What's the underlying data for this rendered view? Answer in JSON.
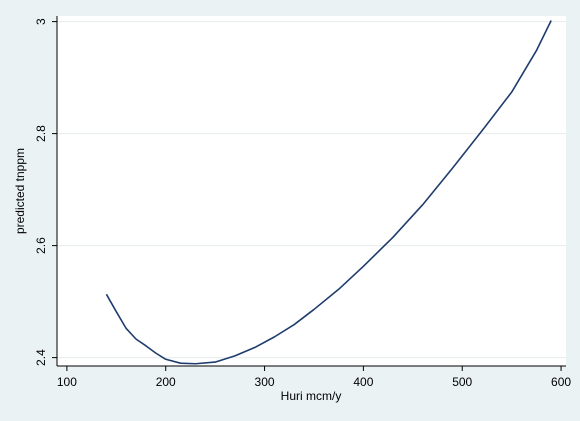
{
  "chart_data": {
    "type": "line",
    "title": "",
    "xlabel": "Huri mcm/y",
    "ylabel": "predicted tnppm",
    "xlim": [
      90,
      605
    ],
    "ylim": [
      2.385,
      3.01
    ],
    "xticks": [
      100,
      200,
      300,
      400,
      500,
      600
    ],
    "yticks": [
      2.4,
      2.6,
      2.8,
      3
    ],
    "xtick_labels": [
      "100",
      "200",
      "300",
      "400",
      "500",
      "600"
    ],
    "ytick_labels": [
      "2.4",
      "2.6",
      "2.8",
      "3"
    ],
    "grid": "horizontal",
    "series": [
      {
        "color": "#1f3c6e",
        "x": [
          140,
          150,
          160,
          170,
          180,
          190,
          200,
          215,
          230,
          250,
          270,
          290,
          310,
          330,
          350,
          375,
          400,
          430,
          460,
          490,
          520,
          550,
          575,
          590
        ],
        "y": [
          2.513,
          2.482,
          2.452,
          2.433,
          2.421,
          2.408,
          2.397,
          2.39,
          2.389,
          2.392,
          2.403,
          2.418,
          2.437,
          2.459,
          2.486,
          2.522,
          2.563,
          2.615,
          2.673,
          2.738,
          2.805,
          2.874,
          2.948,
          3.002
        ]
      }
    ]
  }
}
